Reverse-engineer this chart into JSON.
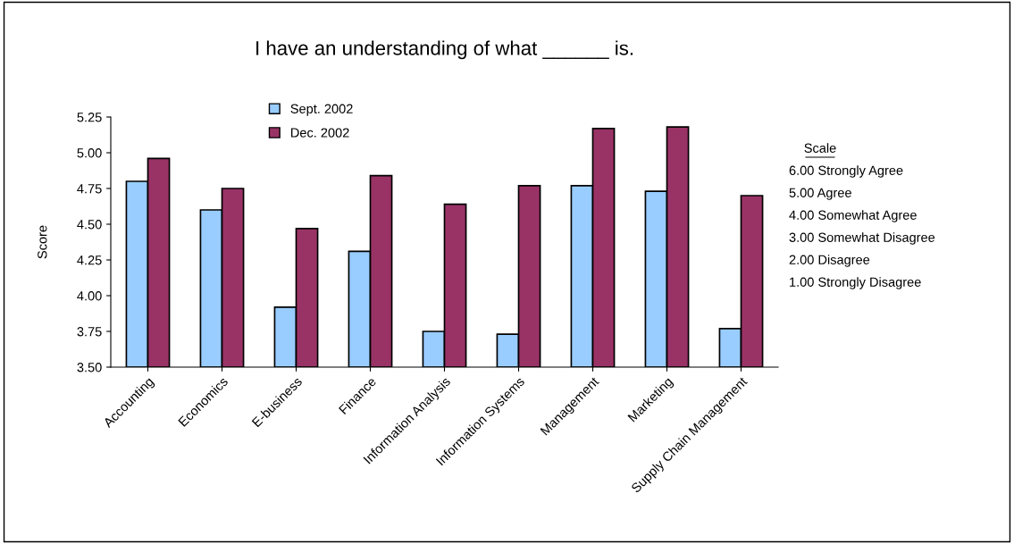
{
  "chart_data": {
    "type": "bar",
    "title": "I have an understanding of what ______ is.",
    "ylabel": "Score",
    "categories": [
      "Accounting",
      "Economics",
      "E-business",
      "Finance",
      "Information Analysis",
      "Information Systems",
      "Management",
      "Marketing",
      "Supply Chain Management"
    ],
    "series": [
      {
        "name": "Sept. 2002",
        "color": "#99ccff",
        "values": [
          4.8,
          4.6,
          3.92,
          4.31,
          3.75,
          3.73,
          4.77,
          4.73,
          3.77
        ]
      },
      {
        "name": "Dec. 2002",
        "color": "#993366",
        "values": [
          4.96,
          4.75,
          4.47,
          4.84,
          4.64,
          4.77,
          5.17,
          5.18,
          4.7
        ]
      }
    ],
    "ylim": [
      3.5,
      5.25
    ],
    "yticks": [
      {
        "value": 3.5,
        "label": "3.50"
      },
      {
        "value": 3.75,
        "label": "3.75"
      },
      {
        "value": 4.0,
        "label": "4.00"
      },
      {
        "value": 4.25,
        "label": "4.25"
      },
      {
        "value": 4.5,
        "label": "4.50"
      },
      {
        "value": 4.75,
        "label": "4.75"
      },
      {
        "value": 5.0,
        "label": "5.00"
      },
      {
        "value": 5.25,
        "label": "5.25"
      }
    ],
    "grid": false,
    "legend": "top left",
    "annotations": [
      "Scale",
      "6.00 Strongly Agree",
      "5.00 Agree",
      "4.00 Somewhat Agree",
      "3.00 Somewhat Disagree",
      "2.00 Disagree",
      "1.00 Strongly Disagree"
    ]
  }
}
